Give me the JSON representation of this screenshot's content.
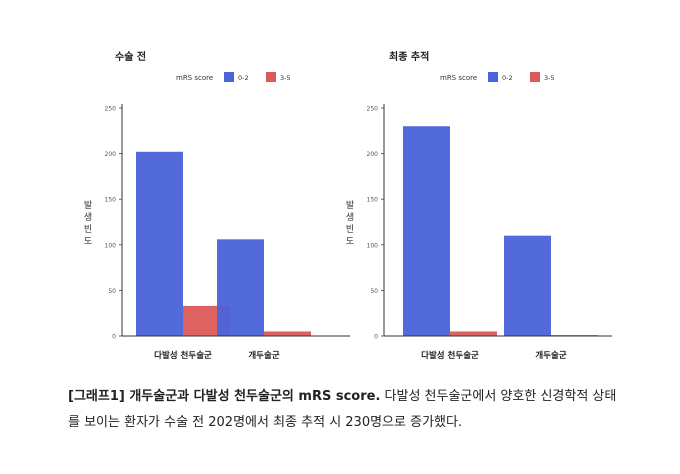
{
  "chart_data": [
    {
      "type": "bar",
      "title": "수술 전",
      "legend_title": "mRS score",
      "legend_placement": "top",
      "ylabel": "발생빈도",
      "xlabel": "",
      "ylim": [
        0,
        250
      ],
      "yticks": [
        0,
        50,
        100,
        150,
        200,
        250
      ],
      "grid": false,
      "categories": [
        "다발성 천두술군",
        "개두술군"
      ],
      "series": [
        {
          "name": "0-2",
          "color": "#4a63d8",
          "values": [
            202,
            106
          ]
        },
        {
          "name": "3-5",
          "color": "#dc5a5a",
          "values": [
            33,
            5
          ]
        }
      ]
    },
    {
      "type": "bar",
      "title": "최종 추적",
      "legend_title": "mRS score",
      "legend_placement": "top",
      "ylabel": "발생빈도",
      "xlabel": "",
      "ylim": [
        0,
        250
      ],
      "yticks": [
        0,
        50,
        100,
        150,
        200,
        250
      ],
      "grid": false,
      "categories": [
        "다발성 천두술군",
        "개두술군"
      ],
      "series": [
        {
          "name": "0-2",
          "color": "#4a63d8",
          "values": [
            230,
            110
          ]
        },
        {
          "name": "3-5",
          "color": "#dc5a5a",
          "values": [
            5,
            1
          ]
        }
      ]
    }
  ],
  "caption": {
    "label": "[그래프1] 개두술군과 다발성 천두술군의 mRS score.",
    "text": " 다발성 천두술군에서 양호한 신경학적 상태를 보이는 환자가 수술 전 202명에서 최종 추적 시 230명으로 증가했다."
  }
}
